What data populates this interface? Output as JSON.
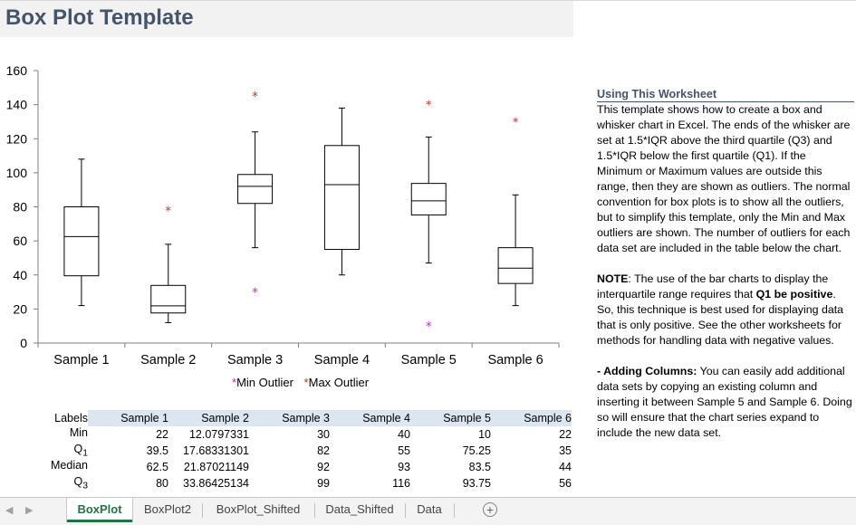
{
  "title": "Box Plot Template",
  "chart_data": {
    "type": "boxplot",
    "categories": [
      "Sample 1",
      "Sample 2",
      "Sample 3",
      "Sample 4",
      "Sample 5",
      "Sample 6"
    ],
    "ylim": [
      0,
      160
    ],
    "yticks": [
      0,
      20,
      40,
      60,
      80,
      100,
      120,
      140,
      160
    ],
    "boxes": [
      {
        "min": 22,
        "q1": 39.5,
        "median": 62.5,
        "q3": 80,
        "max": 108,
        "min_outlier": null,
        "max_outlier": null
      },
      {
        "min": 12,
        "q1": 17.68,
        "median": 21.87,
        "q3": 33.86,
        "max": 58,
        "min_outlier": null,
        "max_outlier": 78
      },
      {
        "min": 56,
        "q1": 82,
        "median": 92,
        "q3": 99,
        "max": 124,
        "min_outlier": 30,
        "max_outlier": 145
      },
      {
        "min": 40,
        "q1": 55,
        "median": 93,
        "q3": 116,
        "max": 138,
        "min_outlier": null,
        "max_outlier": null
      },
      {
        "min": 47,
        "q1": 75.25,
        "median": 83.5,
        "q3": 93.75,
        "max": 121,
        "min_outlier": 10,
        "max_outlier": 140
      },
      {
        "min": 22,
        "q1": 35,
        "median": 44,
        "q3": 56,
        "max": 87,
        "min_outlier": null,
        "max_outlier": 130
      }
    ],
    "legend": [
      {
        "name": "Min Outlier",
        "color": "#e010e0"
      },
      {
        "name": "Max Outlier",
        "color": "#e02020"
      }
    ],
    "legend_position": "bottom",
    "grid": false
  },
  "legend": {
    "marker": "*",
    "min_label": "Min Outlier",
    "max_label": "Max Outlier"
  },
  "table": {
    "headers": [
      "Labels",
      "Sample 1",
      "Sample 2",
      "Sample 3",
      "Sample 4",
      "Sample 5",
      "Sample 6"
    ],
    "rows": [
      {
        "label": "Min",
        "sub": "",
        "values": [
          "22",
          "12.0797331",
          "30",
          "40",
          "10",
          "22"
        ]
      },
      {
        "label": "Q",
        "sub": "1",
        "values": [
          "39.5",
          "17.68331301",
          "82",
          "55",
          "75.25",
          "35"
        ]
      },
      {
        "label": "Median",
        "sub": "",
        "values": [
          "62.5",
          "21.87021149",
          "92",
          "93",
          "83.5",
          "44"
        ]
      },
      {
        "label": "Q",
        "sub": "3",
        "values": [
          "80",
          "33.86425134",
          "99",
          "116",
          "93.75",
          "56"
        ]
      }
    ]
  },
  "notes": {
    "heading": "Using This Worksheet",
    "p1": "This template shows how to create a box and whisker chart in Excel. The ends of the whisker are set at 1.5*IQR above the third quartile (Q3) and 1.5*IQR below the first quartile (Q1). If the Minimum or Maximum values are outside this range, then they are shown as outliers. The normal convention for box plots is to show all the outliers, but to simplify this template, only the Min and Max outliers are shown. The number of outliers for each data set are included in the table below the chart.",
    "note_label": "NOTE",
    "note_a": ": The use of the bar charts to display the interquartile range requires that ",
    "note_bold": "Q1 be positive",
    "note_b": ". So, this technique is best used for displaying data that is only positive. See the other worksheets for methods for handling data with negative values.",
    "add_label": "- Adding Columns:",
    "add_text": " You can easily add additional data sets by copying an existing column and inserting it between Sample 5 and Sample 6. Doing so will ensure that the chart series expand to include the new data set."
  },
  "tabs": {
    "items": [
      "BoxPlot",
      "BoxPlot2",
      "BoxPlot_Shifted",
      "Data_Shifted",
      "Data"
    ],
    "active": "BoxPlot",
    "add": "+",
    "prev": "◀",
    "next": "▶"
  }
}
